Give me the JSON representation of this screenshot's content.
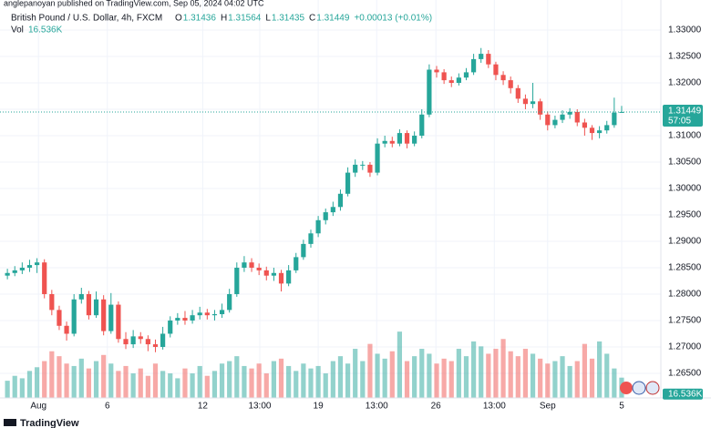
{
  "chart_data": {
    "type": "candlestick",
    "published": "anglepanoyan published on TradingView.com, Sep 05, 2024 04:02 UTC",
    "title": "British Pound / U.S. Dollar, 4h, FXCM",
    "ohlc_header": [
      {
        "label": "O",
        "text": "1.31436"
      },
      {
        "label": "H",
        "text": "1.31564"
      },
      {
        "label": "L",
        "text": "1.31435"
      },
      {
        "label": "C",
        "text": "1.31449"
      }
    ],
    "change_text": "+0.00013 (+0.01%)",
    "volume_label": "Vol",
    "volume_text": "16.536K",
    "countdown": "57:05",
    "footer": "TradingView",
    "up_color": "#26a69a",
    "down_color": "#ef5350",
    "grid": true,
    "x": [
      0,
      1,
      2,
      3,
      4,
      5,
      6,
      7,
      8,
      9,
      10,
      11,
      12,
      13,
      14,
      15,
      16,
      17,
      18,
      19,
      20,
      21,
      22,
      23,
      24,
      25,
      26,
      27,
      28,
      29,
      30,
      31,
      32,
      33,
      34,
      35,
      36,
      37,
      38,
      39,
      40,
      41,
      42,
      43,
      44,
      45,
      46,
      47,
      48,
      49,
      50,
      51,
      52,
      53,
      54,
      55,
      56,
      57,
      58,
      59,
      60,
      61,
      62,
      63,
      64,
      65,
      66,
      67,
      68,
      69,
      70,
      71,
      72,
      73,
      74,
      75,
      76,
      77,
      78,
      79,
      80,
      81,
      82,
      83
    ],
    "open": [
      1.2835,
      1.284,
      1.2845,
      1.285,
      1.2855,
      1.286,
      1.28,
      1.277,
      1.274,
      1.2725,
      1.279,
      1.28,
      1.276,
      1.279,
      1.273,
      1.278,
      1.2715,
      1.2705,
      1.272,
      1.2715,
      1.2705,
      1.27,
      1.2725,
      1.275,
      1.2755,
      1.275,
      1.276,
      1.2765,
      1.276,
      1.2762,
      1.277,
      1.28,
      1.285,
      1.286,
      1.285,
      1.2845,
      1.2835,
      1.284,
      1.282,
      1.2845,
      1.287,
      1.2895,
      1.2915,
      1.294,
      1.2955,
      1.2965,
      1.299,
      1.303,
      1.3045,
      1.3045,
      1.303,
      1.3085,
      1.309,
      1.3085,
      1.3105,
      1.3085,
      1.31,
      1.314,
      1.3225,
      1.322,
      1.3205,
      1.32,
      1.321,
      1.322,
      1.3245,
      1.3255,
      1.3235,
      1.3215,
      1.3205,
      1.319,
      1.317,
      1.316,
      1.3165,
      1.314,
      1.312,
      1.313,
      1.314,
      1.3145,
      1.3125,
      1.3115,
      1.3105,
      1.311,
      1.312,
      1.31436
    ],
    "high": [
      1.2848,
      1.2853,
      1.286,
      1.2865,
      1.2868,
      1.2866,
      1.2808,
      1.2778,
      1.2748,
      1.28,
      1.2812,
      1.2806,
      1.2805,
      1.2798,
      1.2802,
      1.2786,
      1.2728,
      1.2732,
      1.2728,
      1.2722,
      1.2714,
      1.2738,
      1.2758,
      1.2764,
      1.2768,
      1.277,
      1.2776,
      1.2772,
      1.277,
      1.2782,
      1.281,
      1.286,
      1.2872,
      1.2868,
      1.2858,
      1.2852,
      1.285,
      1.2846,
      1.2855,
      1.2878,
      1.2903,
      1.2922,
      1.2948,
      1.2962,
      1.2975,
      1.2998,
      1.304,
      1.3055,
      1.3052,
      1.305,
      1.3095,
      1.31,
      1.3098,
      1.3112,
      1.311,
      1.3108,
      1.315,
      1.3235,
      1.3232,
      1.3226,
      1.3212,
      1.3218,
      1.3228,
      1.3255,
      1.3266,
      1.3262,
      1.324,
      1.3222,
      1.3212,
      1.3196,
      1.3178,
      1.32,
      1.317,
      1.3146,
      1.3138,
      1.3148,
      1.3152,
      1.315,
      1.3132,
      1.312,
      1.3118,
      1.3128,
      1.3172,
      1.31564
    ],
    "low": [
      1.2828,
      1.2834,
      1.2838,
      1.2842,
      1.284,
      1.2792,
      1.276,
      1.2732,
      1.2712,
      1.272,
      1.2782,
      1.2752,
      1.2755,
      1.2722,
      1.2725,
      1.2708,
      1.2696,
      1.2698,
      1.2706,
      1.2692,
      1.269,
      1.2695,
      1.2718,
      1.2742,
      1.2742,
      1.2744,
      1.2752,
      1.2752,
      1.275,
      1.2755,
      1.2765,
      1.2795,
      1.2842,
      1.2842,
      1.2836,
      1.2826,
      1.2825,
      1.2805,
      1.2815,
      1.284,
      1.2865,
      1.2888,
      1.2908,
      1.2932,
      1.2948,
      1.2958,
      1.2985,
      1.3022,
      1.3035,
      1.3022,
      1.3025,
      1.3078,
      1.3078,
      1.308,
      1.3076,
      1.308,
      1.3095,
      1.3135,
      1.321,
      1.3198,
      1.3192,
      1.3195,
      1.3205,
      1.3215,
      1.3238,
      1.3228,
      1.3205,
      1.3196,
      1.318,
      1.3162,
      1.315,
      1.3152,
      1.313,
      1.311,
      1.3114,
      1.3124,
      1.3132,
      1.3118,
      1.31,
      1.3092,
      1.3095,
      1.3104,
      1.3115,
      1.31435
    ],
    "close": [
      1.284,
      1.2845,
      1.285,
      1.2855,
      1.286,
      1.28,
      1.277,
      1.274,
      1.2725,
      1.279,
      1.28,
      1.276,
      1.279,
      1.273,
      1.278,
      1.2715,
      1.2705,
      1.272,
      1.2715,
      1.2705,
      1.27,
      1.2725,
      1.275,
      1.2755,
      1.275,
      1.276,
      1.2765,
      1.276,
      1.2762,
      1.277,
      1.28,
      1.285,
      1.286,
      1.285,
      1.2845,
      1.2835,
      1.284,
      1.282,
      1.2845,
      1.287,
      1.2895,
      1.2915,
      1.294,
      1.2955,
      1.2965,
      1.299,
      1.303,
      1.3045,
      1.3045,
      1.303,
      1.3085,
      1.309,
      1.3085,
      1.3105,
      1.3085,
      1.31,
      1.314,
      1.3225,
      1.322,
      1.3205,
      1.32,
      1.321,
      1.322,
      1.3245,
      1.3255,
      1.3235,
      1.3215,
      1.3205,
      1.319,
      1.317,
      1.316,
      1.3165,
      1.314,
      1.312,
      1.313,
      1.314,
      1.3145,
      1.3125,
      1.3115,
      1.3105,
      1.311,
      1.312,
      1.31436,
      1.31449
    ],
    "volume": [
      14,
      18,
      16,
      22,
      25,
      30,
      38,
      34,
      28,
      26,
      32,
      24,
      30,
      35,
      28,
      22,
      26,
      20,
      24,
      18,
      28,
      22,
      20,
      16,
      24,
      20,
      26,
      18,
      22,
      28,
      30,
      34,
      26,
      24,
      28,
      20,
      30,
      32,
      26,
      22,
      28,
      24,
      26,
      20,
      30,
      34,
      28,
      40,
      30,
      44,
      36,
      32,
      38,
      54,
      30,
      34,
      40,
      36,
      28,
      32,
      30,
      40,
      34,
      46,
      42,
      36,
      40,
      48,
      38,
      34,
      40,
      36,
      32,
      28,
      30,
      34,
      26,
      30,
      44,
      32,
      46,
      36,
      24,
      16.536
    ],
    "volume_lim": [
      0,
      324
    ],
    "xlim": [
      -1,
      88.3
    ],
    "ylim": [
      1.26034,
      1.33569
    ],
    "xticks": [
      {
        "value": 4.2,
        "label": "Aug"
      },
      {
        "value": 13.5,
        "label": "6"
      },
      {
        "value": 26.4,
        "label": "12"
      },
      {
        "value": 34.1,
        "label": "13:00"
      },
      {
        "value": 42,
        "label": "19"
      },
      {
        "value": 49.9,
        "label": "13:00"
      },
      {
        "value": 57.9,
        "label": "26"
      },
      {
        "value": 65.8,
        "label": "13:00"
      },
      {
        "value": 73,
        "label": "Sep"
      },
      {
        "value": 83,
        "label": "5"
      }
    ],
    "yticks": [
      {
        "value": 1.265,
        "label": "1.26500"
      },
      {
        "value": 1.27,
        "label": "1.27000"
      },
      {
        "value": 1.275,
        "label": "1.27500"
      },
      {
        "value": 1.28,
        "label": "1.28000"
      },
      {
        "value": 1.285,
        "label": "1.28500"
      },
      {
        "value": 1.29,
        "label": "1.29000"
      },
      {
        "value": 1.295,
        "label": "1.29500"
      },
      {
        "value": 1.3,
        "label": "1.30000"
      },
      {
        "value": 1.305,
        "label": "1.30500"
      },
      {
        "value": 1.31,
        "label": "1.31000"
      },
      {
        "value": 1.315,
        "label": "1.31500"
      },
      {
        "value": 1.32,
        "label": "1.32000"
      },
      {
        "value": 1.325,
        "label": "1.32500"
      },
      {
        "value": 1.33,
        "label": "1.33000"
      }
    ]
  }
}
